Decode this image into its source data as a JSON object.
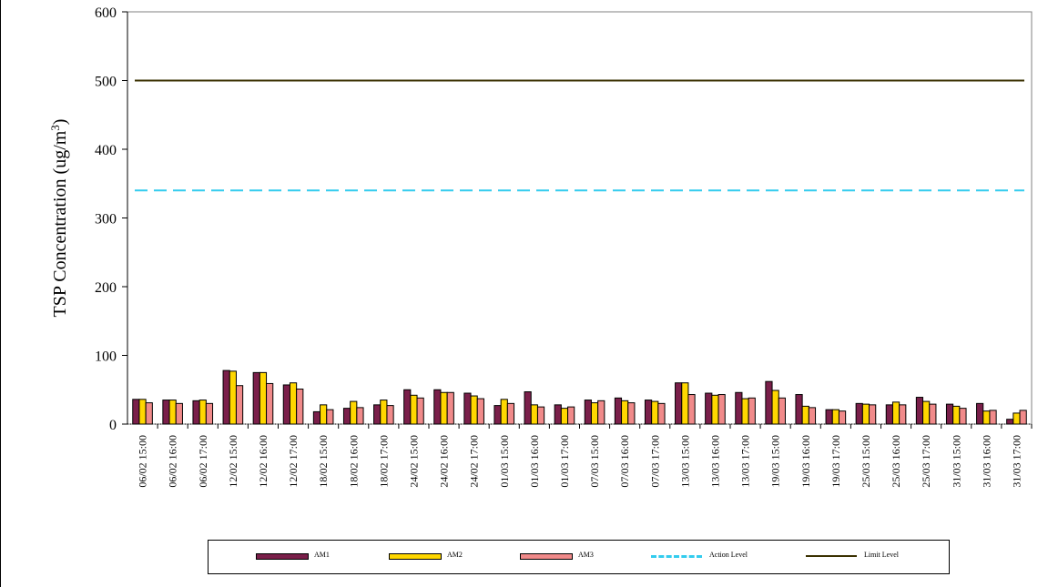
{
  "chart_data": {
    "type": "bar",
    "ylabel": "TSP Concentration (ug/m³)",
    "ylim": [
      0,
      600
    ],
    "yticks": [
      "0",
      "100",
      "200",
      "300",
      "400",
      "500",
      "600"
    ],
    "grid": false,
    "legend_position": "bottom",
    "categories": [
      "06/02 15:00",
      "06/02 16:00",
      "06/02 17:00",
      "12/02 15:00",
      "12/02 16:00",
      "12/02 17:00",
      "18/02 15:00",
      "18/02 16:00",
      "18/02 17:00",
      "24/02 15:00",
      "24/02 16:00",
      "24/02 17:00",
      "01/03 15:00",
      "01/03 16:00",
      "01/03 17:00",
      "07/03 15:00",
      "07/03 16:00",
      "07/03 17:00",
      "13/03 15:00",
      "13/03 16:00",
      "13/03 17:00",
      "19/03 15:00",
      "19/03 16:00",
      "19/03 17:00",
      "25/03 15:00",
      "25/03 16:00",
      "25/03 17:00",
      "31/03 15:00",
      "31/03 16:00",
      "31/03 17:00"
    ],
    "series": [
      {
        "name": "AM1",
        "color": "#7a1f4a",
        "values": [
          36,
          35,
          34,
          78,
          75,
          57,
          18,
          23,
          28,
          50,
          50,
          45,
          27,
          47,
          28,
          35,
          38,
          35,
          60,
          45,
          46,
          62,
          43,
          21,
          30,
          28,
          39,
          29,
          30,
          7
        ]
      },
      {
        "name": "AM2",
        "color": "#ffd700",
        "values": [
          36,
          35,
          35,
          77,
          75,
          60,
          28,
          33,
          35,
          42,
          46,
          41,
          36,
          28,
          23,
          31,
          34,
          33,
          60,
          42,
          37,
          49,
          26,
          21,
          29,
          32,
          33,
          26,
          19,
          16
        ]
      },
      {
        "name": "AM3",
        "color": "#f08a8a",
        "values": [
          31,
          30,
          30,
          56,
          59,
          51,
          21,
          24,
          27,
          38,
          46,
          37,
          30,
          25,
          25,
          34,
          31,
          30,
          43,
          43,
          38,
          38,
          24,
          19,
          28,
          28,
          29,
          23,
          20,
          20
        ]
      }
    ],
    "reference_lines": [
      {
        "name": "Action Level",
        "value": 340,
        "color": "#33ccee",
        "style": "dashed"
      },
      {
        "name": "Limit Level",
        "value": 500,
        "color": "#3a3000",
        "style": "solid"
      }
    ]
  },
  "legend": {
    "items": [
      {
        "label": "AM1",
        "color": "#7a1f4a",
        "kind": "bar"
      },
      {
        "label": "AM2",
        "color": "#ffd700",
        "kind": "bar"
      },
      {
        "label": "AM3",
        "color": "#f08a8a",
        "kind": "bar"
      },
      {
        "label": "Action Level",
        "color": "#33ccee",
        "kind": "dashed"
      },
      {
        "label": "Limit Level",
        "color": "#3a3000",
        "kind": "solid"
      }
    ]
  }
}
